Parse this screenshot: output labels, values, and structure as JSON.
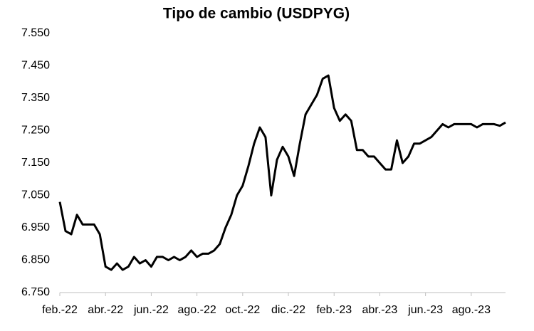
{
  "chart_data": {
    "type": "line",
    "title": "Tipo de cambio (USDPYG)",
    "categories": [
      "feb.-22",
      null,
      null,
      null,
      null,
      null,
      null,
      null,
      "abr.-22",
      null,
      null,
      null,
      null,
      null,
      null,
      null,
      "jun.-22",
      null,
      null,
      null,
      null,
      null,
      null,
      null,
      "ago.-22",
      null,
      null,
      null,
      null,
      null,
      null,
      null,
      "oct.-22",
      null,
      null,
      null,
      null,
      null,
      null,
      null,
      "dic.-22",
      null,
      null,
      null,
      null,
      null,
      null,
      null,
      "feb.-23",
      null,
      null,
      null,
      null,
      null,
      null,
      null,
      "abr.-23",
      null,
      null,
      null,
      null,
      null,
      null,
      null,
      "jun.-23",
      null,
      null,
      null,
      null,
      null,
      null,
      null,
      "ago.-23",
      null,
      null,
      null,
      null,
      null,
      null
    ],
    "series": [
      {
        "name": "USDPYG",
        "color": "#000000",
        "values": [
          7030,
          6940,
          6930,
          6990,
          6960,
          6960,
          6960,
          6930,
          6830,
          6820,
          6840,
          6820,
          6830,
          6860,
          6840,
          6850,
          6830,
          6860,
          6860,
          6850,
          6860,
          6850,
          6860,
          6880,
          6860,
          6870,
          6870,
          6880,
          6900,
          6950,
          6990,
          7050,
          7080,
          7140,
          7210,
          7260,
          7230,
          7050,
          7160,
          7200,
          7170,
          7110,
          7210,
          7300,
          7330,
          7360,
          7410,
          7420,
          7320,
          7280,
          7300,
          7280,
          7190,
          7190,
          7170,
          7170,
          7150,
          7130,
          7130,
          7220,
          7150,
          7170,
          7210,
          7210,
          7220,
          7230,
          7250,
          7270,
          7260,
          7270,
          7270,
          7270,
          7270,
          7260,
          7270,
          7270,
          7270,
          7265,
          7275
        ]
      }
    ],
    "ylim": [
      6750,
      7550
    ],
    "yticks": [
      {
        "value": 6750,
        "label": "6.750"
      },
      {
        "value": 6850,
        "label": "6.850"
      },
      {
        "value": 6950,
        "label": "6.950"
      },
      {
        "value": 7050,
        "label": "7.050"
      },
      {
        "value": 7150,
        "label": "7.150"
      },
      {
        "value": 7250,
        "label": "7.250"
      },
      {
        "value": 7350,
        "label": "7.350"
      },
      {
        "value": 7450,
        "label": "7.450"
      },
      {
        "value": 7550,
        "label": "7.550"
      }
    ]
  }
}
